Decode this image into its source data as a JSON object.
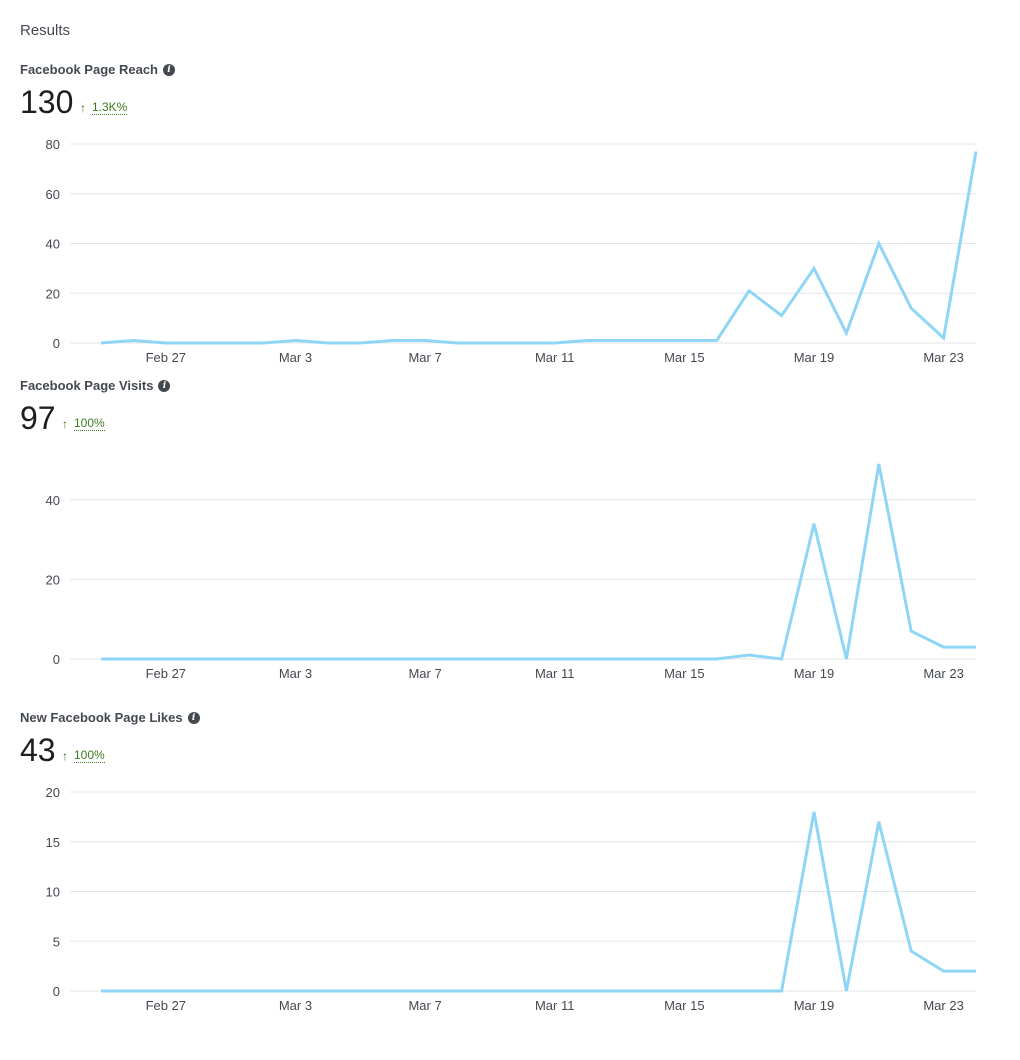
{
  "results_title": "Results",
  "line_color": "#8fd6f6",
  "change_color": "#3e7a1e",
  "x_tick_labels": [
    "Feb 27",
    "Mar 3",
    "Mar 7",
    "Mar 11",
    "Mar 15",
    "Mar 19",
    "Mar 23"
  ],
  "metrics": [
    {
      "title": "Facebook Page Reach",
      "value": "130",
      "change_arrow": "↑",
      "change": "1.3K%"
    },
    {
      "title": "Facebook Page Visits",
      "value": "97",
      "change_arrow": "↑",
      "change": "100%"
    },
    {
      "title": "New Facebook Page Likes",
      "value": "43",
      "change_arrow": "↑",
      "change": "100%"
    }
  ],
  "chart_data": [
    {
      "type": "line",
      "title": "Facebook Page Reach",
      "x": [
        "Feb 25",
        "Feb 26",
        "Feb 27",
        "Feb 28",
        "Mar 1",
        "Mar 2",
        "Mar 3",
        "Mar 4",
        "Mar 5",
        "Mar 6",
        "Mar 7",
        "Mar 8",
        "Mar 9",
        "Mar 10",
        "Mar 11",
        "Mar 12",
        "Mar 13",
        "Mar 14",
        "Mar 15",
        "Mar 16",
        "Mar 17",
        "Mar 18",
        "Mar 19",
        "Mar 20",
        "Mar 21",
        "Mar 22",
        "Mar 23",
        "Mar 24"
      ],
      "values": [
        0,
        1,
        0,
        0,
        0,
        0,
        1,
        0,
        0,
        1,
        1,
        0,
        0,
        0,
        0,
        1,
        1,
        1,
        1,
        1,
        21,
        11,
        30,
        4,
        40,
        14,
        2,
        77
      ],
      "yticks": [
        0,
        20,
        40,
        60,
        80
      ],
      "ylim": [
        0,
        80
      ],
      "grid": true
    },
    {
      "type": "line",
      "title": "Facebook Page Visits",
      "x": [
        "Feb 25",
        "Feb 26",
        "Feb 27",
        "Feb 28",
        "Mar 1",
        "Mar 2",
        "Mar 3",
        "Mar 4",
        "Mar 5",
        "Mar 6",
        "Mar 7",
        "Mar 8",
        "Mar 9",
        "Mar 10",
        "Mar 11",
        "Mar 12",
        "Mar 13",
        "Mar 14",
        "Mar 15",
        "Mar 16",
        "Mar 17",
        "Mar 18",
        "Mar 19",
        "Mar 20",
        "Mar 21",
        "Mar 22",
        "Mar 23",
        "Mar 24"
      ],
      "values": [
        0,
        0,
        0,
        0,
        0,
        0,
        0,
        0,
        0,
        0,
        0,
        0,
        0,
        0,
        0,
        0,
        0,
        0,
        0,
        0,
        1,
        0,
        34,
        0,
        49,
        7,
        3,
        3
      ],
      "yticks": [
        0,
        20,
        40
      ],
      "ylim": [
        0,
        50
      ],
      "grid": true
    },
    {
      "type": "line",
      "title": "New Facebook Page Likes",
      "x": [
        "Feb 25",
        "Feb 26",
        "Feb 27",
        "Feb 28",
        "Mar 1",
        "Mar 2",
        "Mar 3",
        "Mar 4",
        "Mar 5",
        "Mar 6",
        "Mar 7",
        "Mar 8",
        "Mar 9",
        "Mar 10",
        "Mar 11",
        "Mar 12",
        "Mar 13",
        "Mar 14",
        "Mar 15",
        "Mar 16",
        "Mar 17",
        "Mar 18",
        "Mar 19",
        "Mar 20",
        "Mar 21",
        "Mar 22",
        "Mar 23",
        "Mar 24"
      ],
      "values": [
        0,
        0,
        0,
        0,
        0,
        0,
        0,
        0,
        0,
        0,
        0,
        0,
        0,
        0,
        0,
        0,
        0,
        0,
        0,
        0,
        0,
        0,
        18,
        0,
        17,
        4,
        2,
        2
      ],
      "yticks": [
        0,
        5,
        10,
        15,
        20
      ],
      "ylim": [
        0,
        20
      ],
      "grid": true
    }
  ]
}
